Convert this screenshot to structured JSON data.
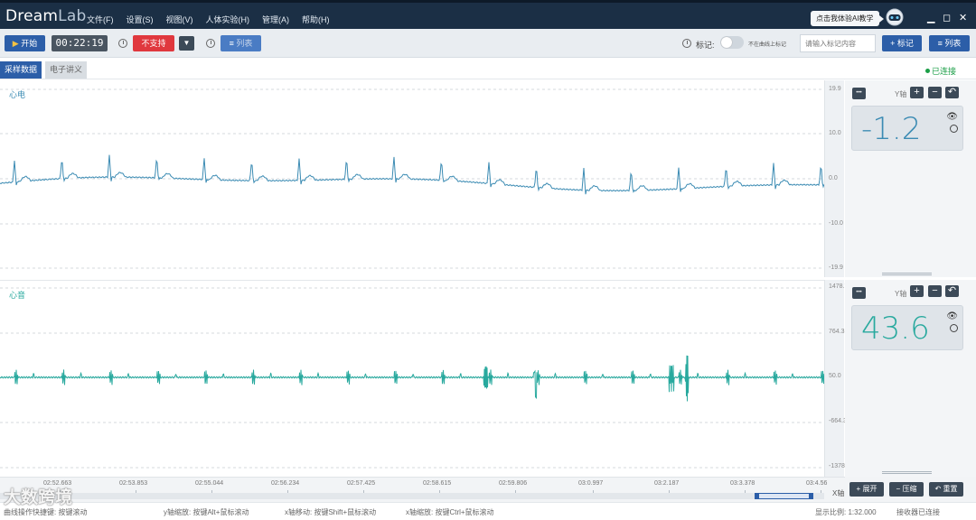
{
  "app": {
    "logo_main": "Dream",
    "logo_sub": "Lab"
  },
  "menu": [
    "文件(F)",
    "设置(S)",
    "视图(V)",
    "人体实验(H)",
    "管理(A)",
    "帮助(H)"
  ],
  "ai_bubble": "点击我体验AI教学",
  "window_controls": {
    "minimize": "▁",
    "maximize": "◻",
    "close": "✕"
  },
  "toolbar": {
    "start_label": "开始",
    "timer": "00:22:19",
    "unsupported_label": "不支持",
    "dropdown_glyph": "▼",
    "list_label_left": "列表",
    "mark_label": "标记:",
    "toggle_text": "不在曲线上标记",
    "mark_placeholder": "请输入标记内容",
    "add_mark_label": "+ 标记",
    "list_label_right": "≡ 列表"
  },
  "tabs": {
    "active": "采样数据",
    "inactive": "电子讲义"
  },
  "connection_status": "已连接",
  "panels": [
    {
      "label": "心电",
      "color": "#3b8bb3",
      "ticks": [
        "19.9",
        "10.0",
        "0.0",
        "-10.0",
        "-19.9"
      ],
      "yaxis_label": "Y轴",
      "value": "-1.2",
      "value_color": "#3b8bb3"
    },
    {
      "label": "心音",
      "color": "#28a99e",
      "ticks": [
        "1478.7",
        "764.3",
        "50.0",
        "-664.3",
        "-1378.7"
      ],
      "yaxis_label": "Y轴",
      "value": "43.6",
      "value_color": "#28a99e"
    }
  ],
  "side_icons": {
    "more": "•••",
    "plus": "+",
    "minus": "−",
    "back": "↶",
    "eye": "👁"
  },
  "time_axis": {
    "labels": [
      "02:52.663",
      "02:53.853",
      "02:55.044",
      "02:56.234",
      "02:57.425",
      "02:58.615",
      "02:59.806",
      "03:0.997",
      "03:2.187",
      "03:3.378",
      "03:4.56"
    ],
    "x_label": "X轴"
  },
  "bottom_buttons": {
    "expand": "+ 展开",
    "compress": "− 压缩",
    "reset": "↶ 重置"
  },
  "status": {
    "hint1": "曲线操作快捷键: 按键滚动",
    "hint2": "y轴缩放: 按键Alt+鼠标滚动",
    "hint3": "x轴移动: 按键Shift+鼠标滚动",
    "hint4": "x轴缩放: 按键Ctrl+鼠标滚动",
    "scale": "显示比例: 1:32.000",
    "receiver": "接收器已连接"
  },
  "watermark": "大数跨境"
}
